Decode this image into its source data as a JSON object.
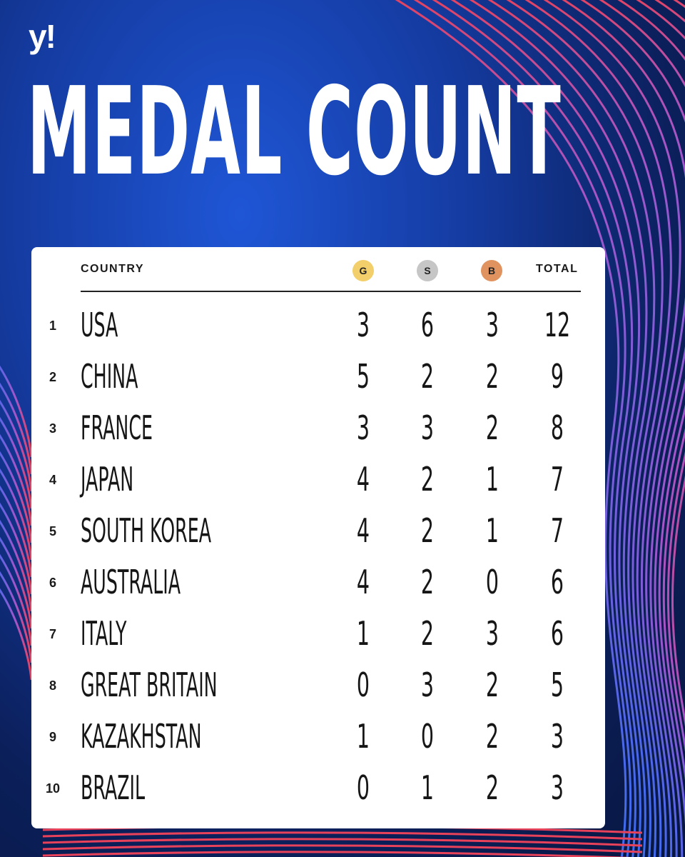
{
  "brand": {
    "logo_text": "y!"
  },
  "title": "MEDAL COUNT",
  "colors": {
    "background": "#143a9e",
    "gold": "#f2cf6a",
    "silver": "#c6c6c6",
    "bronze": "#e0935e",
    "line_red": "#e8425a",
    "line_blue": "#3b6cf0"
  },
  "table": {
    "headers": {
      "country": "COUNTRY",
      "gold": "G",
      "silver": "S",
      "bronze": "B",
      "total": "TOTAL"
    },
    "rows": [
      {
        "rank": "1",
        "country": "USA",
        "gold": "3",
        "silver": "6",
        "bronze": "3",
        "total": "12"
      },
      {
        "rank": "2",
        "country": "CHINA",
        "gold": "5",
        "silver": "2",
        "bronze": "2",
        "total": "9"
      },
      {
        "rank": "3",
        "country": "FRANCE",
        "gold": "3",
        "silver": "3",
        "bronze": "2",
        "total": "8"
      },
      {
        "rank": "4",
        "country": "JAPAN",
        "gold": "4",
        "silver": "2",
        "bronze": "1",
        "total": "7"
      },
      {
        "rank": "5",
        "country": "SOUTH KOREA",
        "gold": "4",
        "silver": "2",
        "bronze": "1",
        "total": "7"
      },
      {
        "rank": "6",
        "country": "AUSTRALIA",
        "gold": "4",
        "silver": "2",
        "bronze": "0",
        "total": "6"
      },
      {
        "rank": "7",
        "country": "ITALY",
        "gold": "1",
        "silver": "2",
        "bronze": "3",
        "total": "6"
      },
      {
        "rank": "8",
        "country": "GREAT BRITAIN",
        "gold": "0",
        "silver": "3",
        "bronze": "2",
        "total": "5"
      },
      {
        "rank": "9",
        "country": "KAZAKHSTAN",
        "gold": "1",
        "silver": "0",
        "bronze": "2",
        "total": "3"
      },
      {
        "rank": "10",
        "country": "BRAZIL",
        "gold": "0",
        "silver": "1",
        "bronze": "2",
        "total": "3"
      }
    ]
  }
}
